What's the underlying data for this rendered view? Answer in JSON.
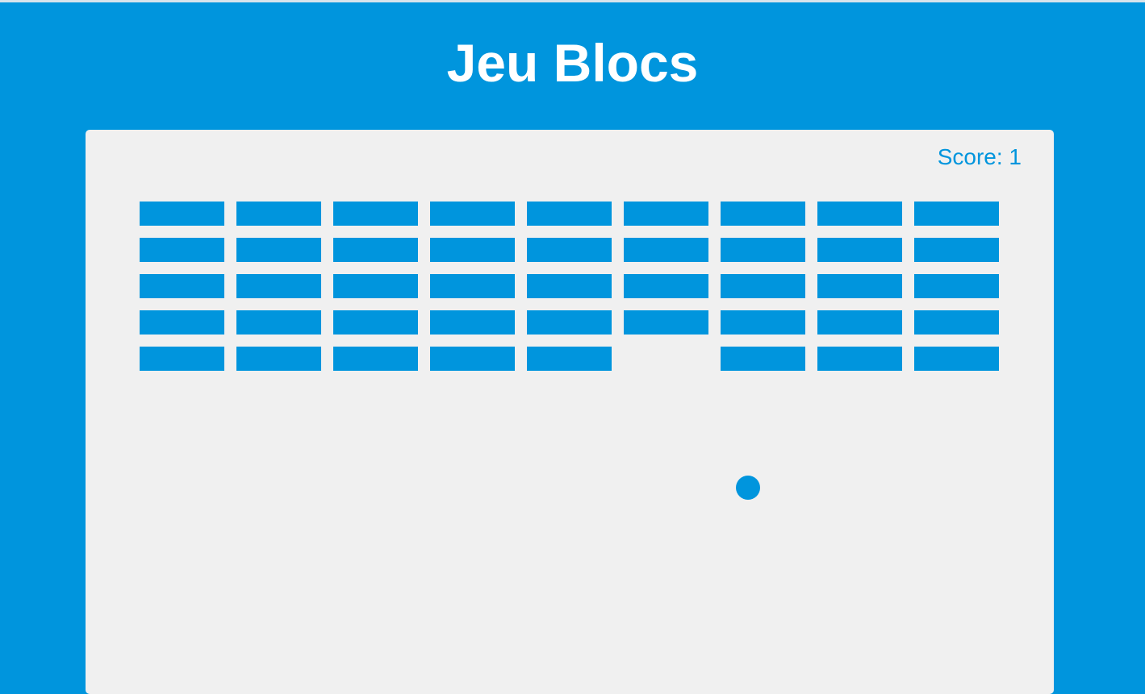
{
  "header": {
    "title": "Jeu Blocs"
  },
  "game": {
    "score_label": "Score: 1",
    "score": 1,
    "colors": {
      "background": "#0095dd",
      "board": "#f0f0f0",
      "brick": "#0095dd",
      "ball": "#0095dd",
      "text": "#ffffff"
    },
    "bricks": {
      "rows": 5,
      "columns": 9,
      "broken": [
        [
          4,
          5
        ]
      ]
    }
  }
}
